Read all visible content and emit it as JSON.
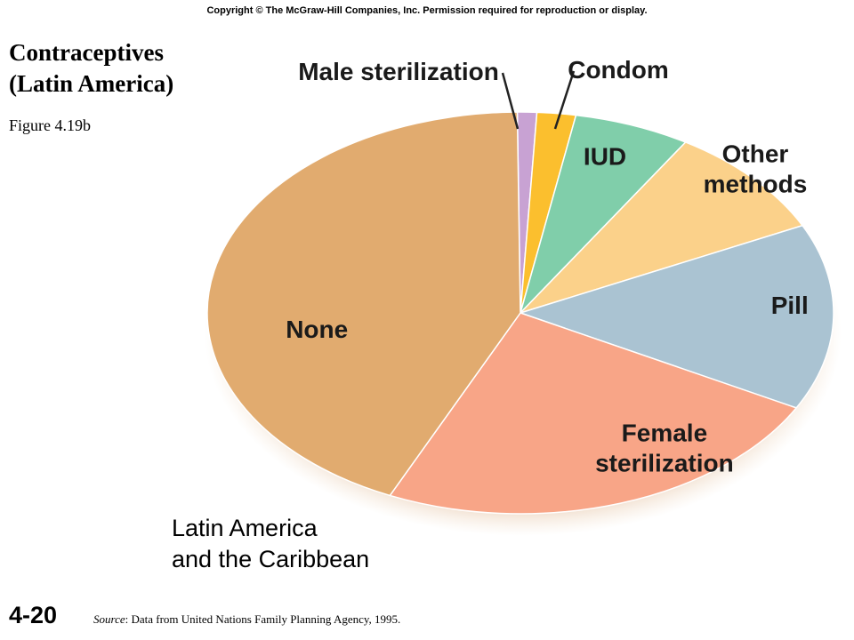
{
  "header": {
    "copyright": "Copyright © The McGraw-Hill Companies, Inc. Permission required for reproduction or display."
  },
  "title": {
    "line1": "Contraceptives",
    "line2": "(Latin America)"
  },
  "figure_label": "Figure 4.19b",
  "slide_number": "4-20",
  "source": {
    "prefix": "Source",
    "text": ": Data from United Nations Family Planning Agency, 1995."
  },
  "chart_data": {
    "type": "pie",
    "title": "Latin America and the Caribbean",
    "title_lines": [
      "Latin America",
      "and the Caribbean"
    ],
    "slices": [
      {
        "label": "Male sterilization",
        "lines": [
          "Male sterilization"
        ],
        "value": 1.0,
        "color": "#c8a2d3"
      },
      {
        "label": "Condom",
        "lines": [
          "Condom"
        ],
        "value": 2.0,
        "color": "#fbbf2e"
      },
      {
        "label": "IUD",
        "lines": [
          "IUD"
        ],
        "value": 6.0,
        "color": "#80ceaa"
      },
      {
        "label": "Other methods",
        "lines": [
          "Other",
          "methods"
        ],
        "value": 9.0,
        "color": "#fbd18a"
      },
      {
        "label": "Pill",
        "lines": [
          "Pill"
        ],
        "value": 15.0,
        "color": "#aac3d2"
      },
      {
        "label": "Female sterilization",
        "lines": [
          "Female",
          "sterilization"
        ],
        "value": 24.0,
        "color": "#f8a587"
      },
      {
        "label": "None",
        "lines": [
          "None"
        ],
        "value": 43.0,
        "color": "#e1ab6f"
      }
    ]
  }
}
